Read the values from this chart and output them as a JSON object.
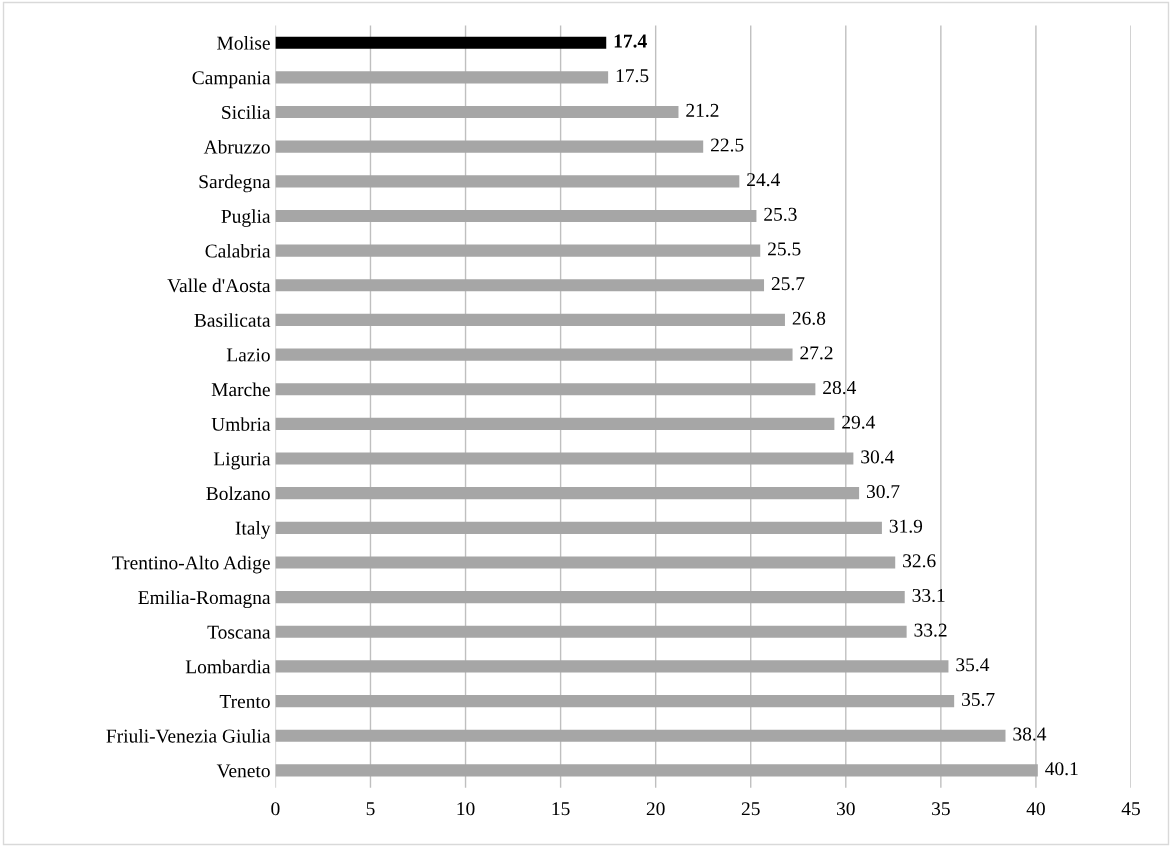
{
  "chart_data": {
    "type": "bar",
    "orientation": "horizontal",
    "categories": [
      "Molise",
      "Campania",
      "Sicilia",
      "Abruzzo",
      "Sardegna",
      "Puglia",
      "Calabria",
      "Valle d'Aosta",
      "Basilicata",
      "Lazio",
      "Marche",
      "Umbria",
      "Liguria",
      "Bolzano",
      "Italy",
      "Trentino-Alto Adige",
      "Emilia-Romagna",
      "Toscana",
      "Lombardia",
      "Trento",
      "Friuli-Venezia Giulia",
      "Veneto"
    ],
    "values": [
      17.4,
      17.5,
      21.2,
      22.5,
      24.4,
      25.3,
      25.5,
      25.7,
      26.8,
      27.2,
      28.4,
      29.4,
      30.4,
      30.7,
      31.9,
      32.6,
      33.1,
      33.2,
      35.4,
      35.7,
      38.4,
      40.1
    ],
    "colors": [
      "#000000",
      "#a6a6a6",
      "#a6a6a6",
      "#a6a6a6",
      "#a6a6a6",
      "#a6a6a6",
      "#a6a6a6",
      "#a6a6a6",
      "#a6a6a6",
      "#a6a6a6",
      "#a6a6a6",
      "#a6a6a6",
      "#a6a6a6",
      "#a6a6a6",
      "#a6a6a6",
      "#a6a6a6",
      "#a6a6a6",
      "#a6a6a6",
      "#a6a6a6",
      "#a6a6a6",
      "#a6a6a6",
      "#a6a6a6"
    ],
    "xlim": [
      0,
      45
    ],
    "xticks": [
      0,
      5,
      10,
      15,
      20,
      25,
      30,
      35,
      40,
      45
    ],
    "grid": "x",
    "data_labels": true
  }
}
